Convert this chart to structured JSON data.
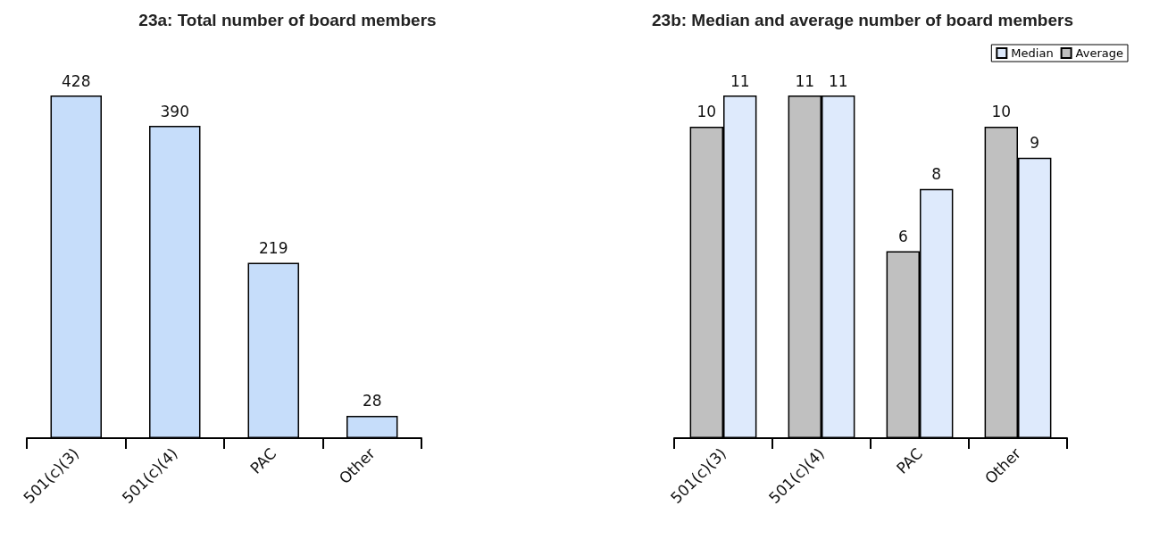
{
  "chart_data": [
    {
      "type": "bar",
      "title": "23a: Total number of board members",
      "categories": [
        "501(c)(3)",
        "501(c)(4)",
        "PAC",
        "Other"
      ],
      "values": [
        428,
        390,
        219,
        28
      ],
      "color": "#c6ddfa",
      "data_labels": true
    },
    {
      "type": "bar",
      "title": "23b: Median and average number of board members",
      "categories": [
        "501(c)(3)",
        "501(c)(4)",
        "PAC",
        "Other"
      ],
      "series": [
        {
          "name": "Average",
          "color": "#c0c0c0",
          "values": [
            10,
            11,
            6,
            10
          ]
        },
        {
          "name": "Median",
          "color": "#deeafc",
          "values": [
            11,
            11,
            8,
            9
          ]
        }
      ],
      "data_labels": true,
      "legend": "top right"
    }
  ]
}
